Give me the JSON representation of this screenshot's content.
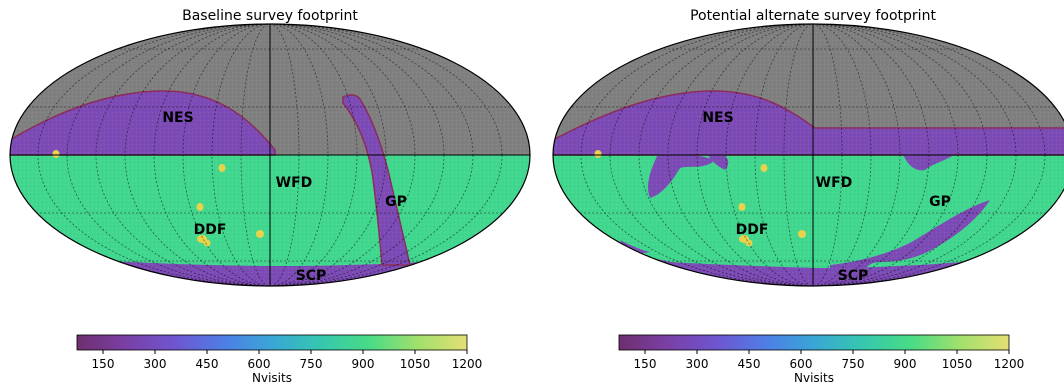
{
  "panels": [
    {
      "title": "Baseline survey footprint",
      "regions": {
        "nes": "NES",
        "wfd": "WFD",
        "gp": "GP",
        "ddf": "DDF",
        "scp": "SCP"
      }
    },
    {
      "title": "Potential alternate survey footprint",
      "regions": {
        "nes": "NES",
        "wfd": "WFD",
        "gp": "GP",
        "ddf": "DDF",
        "scp": "SCP"
      }
    }
  ],
  "colorbar": {
    "label": "Nvisits",
    "ticks": [
      "150",
      "300",
      "450",
      "600",
      "750",
      "900",
      "1050",
      "1200"
    ],
    "tick_values": [
      150,
      300,
      450,
      600,
      750,
      900,
      1050,
      1200
    ],
    "range": [
      75,
      1200
    ]
  },
  "colors": {
    "background_sky": "#808080",
    "wfd": "#41d78f",
    "low_visits": "#7d4bb5",
    "ddf": "#e8d34a",
    "nes_edge": "#8b2c5c",
    "grid": "#000000"
  }
}
